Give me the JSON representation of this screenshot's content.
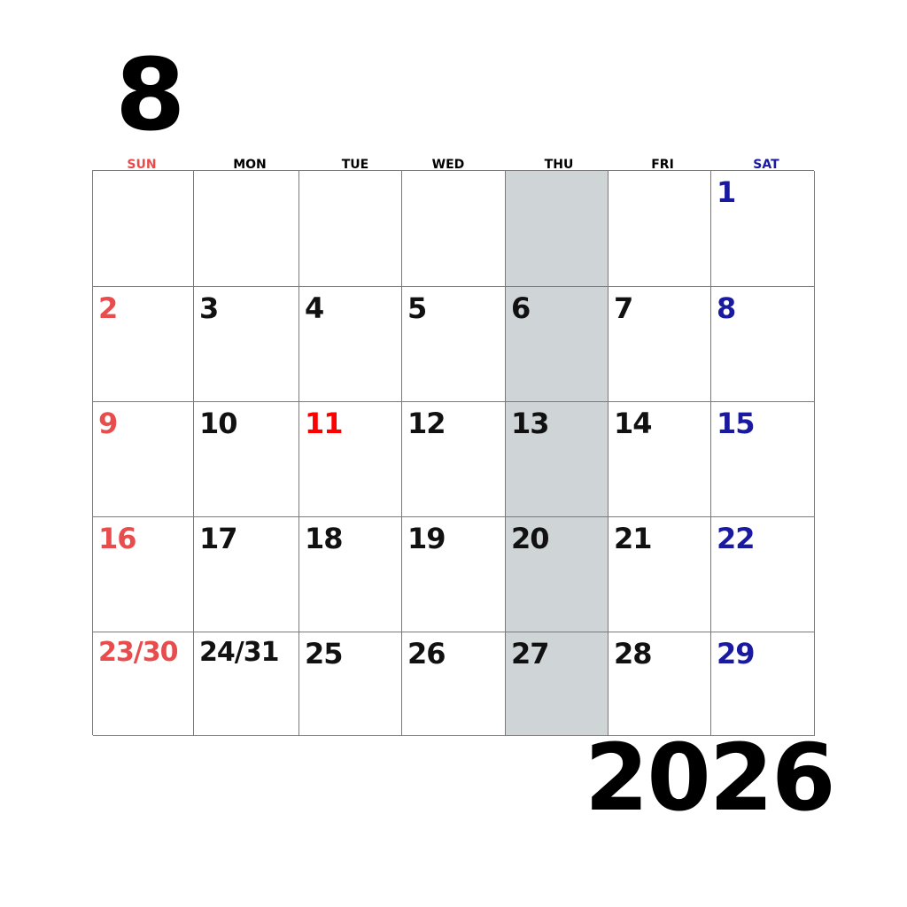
{
  "month": "8",
  "year": "2026",
  "colors": {
    "sunday": "#e84c4c",
    "saturday": "#1a1aa0",
    "holiday": "#ff0000",
    "weekday": "#111111",
    "highlight_column": "#cfd4d7"
  },
  "weekdays": [
    "SUN",
    "MON",
    "TUE",
    "WED",
    "THU",
    "FRI",
    "SAT"
  ],
  "highlight_column_index": 4,
  "weeks": [
    [
      "",
      "",
      "",
      "",
      "",
      "",
      "1"
    ],
    [
      "2",
      "3",
      "4",
      "5",
      "6",
      "7",
      "8"
    ],
    [
      "9",
      "10",
      "11",
      "12",
      "13",
      "14",
      "15"
    ],
    [
      "16",
      "17",
      "18",
      "19",
      "20",
      "21",
      "22"
    ],
    [
      "23/30",
      "24/31",
      "25",
      "26",
      "27",
      "28",
      "29"
    ]
  ],
  "holidays": [
    "11"
  ]
}
